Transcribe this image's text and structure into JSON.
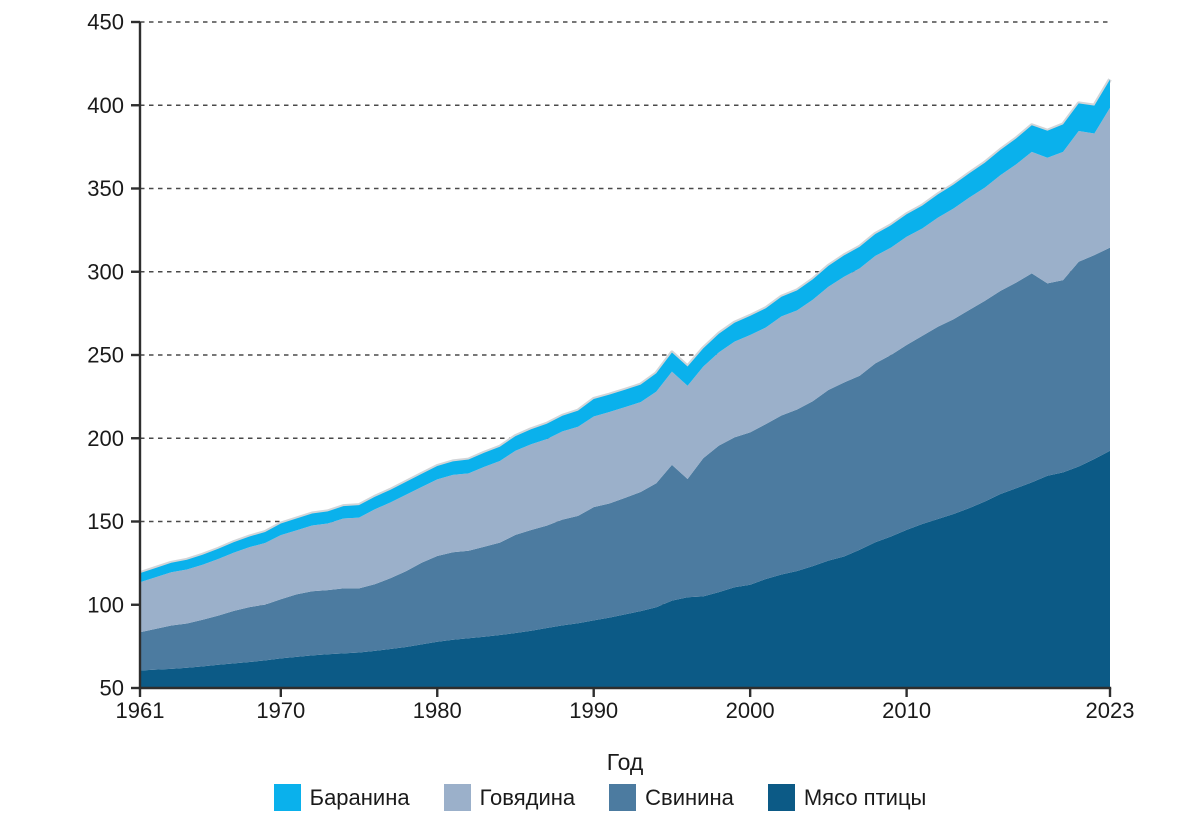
{
  "page": {
    "background_color": "#ffffff",
    "text_color": "#1a1a1a"
  },
  "chart_data": {
    "type": "area",
    "stacked": true,
    "title": "",
    "xlabel": "Год",
    "ylabel": "",
    "xlim": [
      1961,
      2023
    ],
    "ylim": [
      50,
      450
    ],
    "baseline_value": 50,
    "x_ticks": [
      1961,
      1970,
      1980,
      1990,
      2000,
      2010,
      2023
    ],
    "y_ticks": [
      50,
      100,
      150,
      200,
      250,
      300,
      350,
      400,
      450
    ],
    "grid": {
      "visible": true,
      "dashed": true,
      "color": "#4a4a4a"
    },
    "legend_position": "bottom",
    "top_outline_color": "#d2d5d8",
    "axis_color": "#2e2e2e",
    "years": [
      1961,
      1962,
      1963,
      1964,
      1965,
      1966,
      1967,
      1968,
      1969,
      1970,
      1971,
      1972,
      1973,
      1974,
      1975,
      1976,
      1977,
      1978,
      1979,
      1980,
      1981,
      1982,
      1983,
      1984,
      1985,
      1986,
      1987,
      1988,
      1989,
      1990,
      1991,
      1992,
      1993,
      1994,
      1995,
      1996,
      1997,
      1998,
      1999,
      2000,
      2001,
      2002,
      2003,
      2004,
      2005,
      2006,
      2007,
      2008,
      2009,
      2010,
      2011,
      2012,
      2013,
      2014,
      2015,
      2016,
      2017,
      2018,
      2019,
      2020,
      2021,
      2022,
      2023
    ],
    "series": [
      {
        "name": "Мясо птицы",
        "color": "#0c5a86",
        "values": [
          10.5,
          11,
          11.5,
          12.2,
          13,
          14,
          14.8,
          15.6,
          16.6,
          17.8,
          18.7,
          19.6,
          20.3,
          20.8,
          21.3,
          22.3,
          23.4,
          24.6,
          26.2,
          27.8,
          29,
          29.9,
          30.8,
          31.8,
          33,
          34.4,
          36,
          37.6,
          38.9,
          40.6,
          42.3,
          44.2,
          46.2,
          48.5,
          52.5,
          54.5,
          55,
          57.6,
          60.5,
          62,
          65.5,
          68.2,
          70.3,
          73.2,
          76.5,
          79,
          83,
          87.5,
          91,
          95,
          98.5,
          101.5,
          104.5,
          108,
          112,
          116.5,
          120,
          123.5,
          127.5,
          129.5,
          133,
          137.5,
          142.5
        ]
      },
      {
        "name": "Свинина",
        "color": "#4c7ba0",
        "values": [
          23,
          24.5,
          26,
          26.5,
          28,
          29.5,
          31.5,
          33,
          33.5,
          35.5,
          37.5,
          38.5,
          38.5,
          39,
          38.5,
          40,
          42.5,
          45.5,
          49,
          51.5,
          52.5,
          52.5,
          54,
          55.5,
          59,
          60.5,
          61.5,
          63.5,
          64.5,
          68,
          68.5,
          70,
          71.5,
          74.5,
          81.5,
          71,
          83,
          88,
          90,
          91.5,
          93,
          95.5,
          97,
          99,
          102.5,
          104.5,
          104.5,
          107.5,
          109,
          111,
          113,
          115.5,
          117,
          119,
          120.5,
          122,
          123.5,
          125.5,
          115.5,
          115.5,
          123,
          122.5,
          122
        ]
      },
      {
        "name": "Говядина",
        "color": "#9bb0ca",
        "values": [
          30,
          31,
          32,
          32.5,
          33,
          34,
          35,
          36,
          37,
          38.5,
          38.5,
          39.5,
          40,
          42,
          42.5,
          45,
          45.5,
          46,
          45.5,
          46,
          46.5,
          46.5,
          48,
          49,
          50.5,
          51.5,
          52,
          53,
          53.5,
          54.5,
          55,
          54.5,
          54,
          55,
          56,
          56,
          55,
          56,
          57.5,
          58.5,
          58,
          59.5,
          59.5,
          61,
          62,
          63.5,
          64.5,
          64.5,
          64.5,
          65,
          64.5,
          65.5,
          66.5,
          67.5,
          68,
          69.5,
          71,
          73,
          75.5,
          77,
          78.5,
          73,
          84
        ]
      },
      {
        "name": "Баранина",
        "color": "#0ab1ec",
        "values": [
          5.5,
          5.6,
          5.7,
          5.8,
          6,
          6.1,
          6.3,
          6.4,
          6.6,
          7,
          7.1,
          7.2,
          7.3,
          7.4,
          7.5,
          7.5,
          7.6,
          7.7,
          7.9,
          8,
          8.1,
          8.3,
          8.5,
          8.6,
          8.8,
          9,
          9.2,
          9.4,
          9.7,
          10.5,
          10.4,
          10.4,
          10.5,
          11,
          11.5,
          11.6,
          11,
          11.2,
          11.4,
          11.5,
          11.6,
          11.8,
          12,
          12.2,
          12.5,
          12.8,
          13,
          13.2,
          13.4,
          13.5,
          13.7,
          14,
          14.3,
          14.6,
          15,
          15.2,
          15.5,
          16,
          16.2,
          16.5,
          16.6,
          16.8,
          17
        ]
      }
    ]
  },
  "legend": {
    "items": [
      {
        "label": "Баранина",
        "color": "#0ab1ec"
      },
      {
        "label": "Говядина",
        "color": "#9bb0ca"
      },
      {
        "label": "Свинина",
        "color": "#4c7ba0"
      },
      {
        "label": "Мясо птицы",
        "color": "#0c5a86"
      }
    ]
  }
}
